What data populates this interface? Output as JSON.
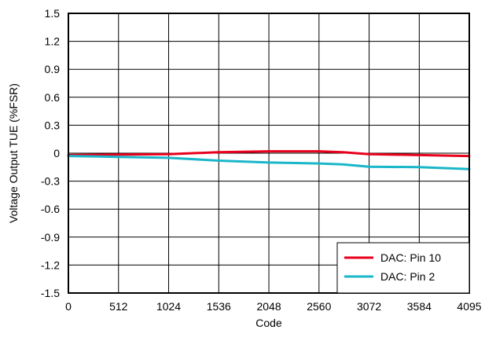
{
  "chart_data": {
    "type": "line",
    "title": "",
    "xlabel": "Code",
    "ylabel": "Voltage Output TUE (%FSR)",
    "xlim": [
      0,
      4095
    ],
    "ylim": [
      -1.5,
      1.5
    ],
    "x_ticks": [
      0,
      512,
      1024,
      1536,
      2048,
      2560,
      3072,
      3584,
      4095
    ],
    "x_tick_labels": [
      "0",
      "512",
      "1024",
      "1536",
      "2048",
      "2560",
      "3072",
      "3584",
      "4095"
    ],
    "y_ticks": [
      1.5,
      1.2,
      0.9,
      0.6,
      0.3,
      0,
      -0.3,
      -0.6,
      -0.9,
      -1.2,
      -1.5
    ],
    "y_tick_labels": [
      "1.5",
      "1.2",
      "0.9",
      "0.6",
      "0.3",
      "0",
      "-0.3",
      "-0.6",
      "-0.9",
      "-1.2",
      "-1.5"
    ],
    "grid": true,
    "legend_position": "bottom-right",
    "series": [
      {
        "name": "DAC: Pin 10",
        "color": "#e8001c",
        "x": [
          0,
          512,
          1024,
          1536,
          2048,
          2560,
          2800,
          3072,
          3584,
          4095
        ],
        "y": [
          -0.02,
          -0.015,
          -0.01,
          0.01,
          0.02,
          0.02,
          0.01,
          -0.01,
          -0.02,
          -0.03
        ]
      },
      {
        "name": "DAC: Pin 2",
        "color": "#1ab6c9",
        "x": [
          0,
          512,
          1024,
          1536,
          2048,
          2560,
          2800,
          3072,
          3584,
          4095
        ],
        "y": [
          -0.03,
          -0.04,
          -0.05,
          -0.08,
          -0.1,
          -0.11,
          -0.12,
          -0.145,
          -0.15,
          -0.17
        ]
      }
    ]
  }
}
